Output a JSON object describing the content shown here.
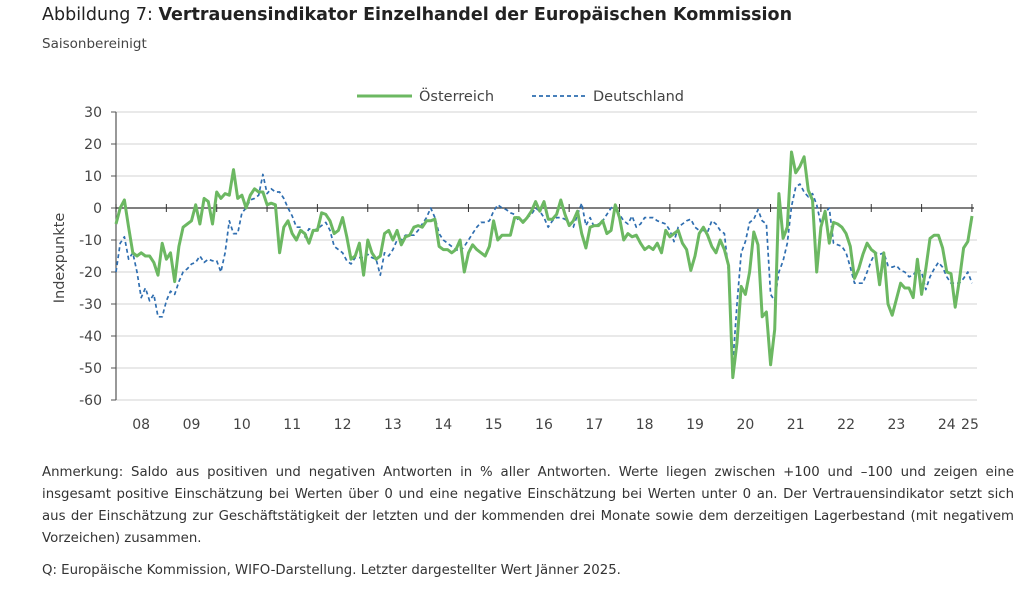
{
  "header": {
    "title_prefix": "Abbildung 7: ",
    "title_main": "Vertrauensindikator Einzelhandel der Europäischen Kommission",
    "subtitle": "Saisonbereinigt"
  },
  "footer": {
    "note": "Anmerkung: Saldo aus positiven und negativen Antworten in % aller Antworten. Werte liegen zwischen +100 und –100 und zeigen eine insgesamt positive Einschätzung bei Werten über 0 und eine negative Einschätzung bei Werten unter 0 an. Der Vertrauensindikator setzt sich aus der Einschätzung zur Geschäftstätigkeit der letzten und der kommenden drei Monate sowie dem derzeitigen Lagerbestand (mit negativem Vorzeichen) zusammen.",
    "source": "Q: Europäische Kommission, WIFO-Darstellung. Letzter dargestellter Wert Jänner 2025."
  },
  "chart_data": {
    "type": "line",
    "ylabel": "Indexpunkte",
    "ylim": [
      -60,
      30
    ],
    "y_ticks": [
      "30",
      "20",
      "10",
      "0",
      "-10",
      "-20",
      "-30",
      "-40",
      "-50",
      "-60"
    ],
    "x_tick_labels": [
      "08",
      "09",
      "10",
      "11",
      "12",
      "13",
      "14",
      "15",
      "16",
      "17",
      "18",
      "19",
      "20",
      "21",
      "22",
      "23",
      "24",
      "25"
    ],
    "x_start": "2008-01",
    "x_end": "2025-01",
    "frequency": "monthly",
    "grid": "horizontal",
    "legend_position": "top-center",
    "series": [
      {
        "name": "Österreich",
        "color": "#6cb862",
        "style": "solid",
        "values": [
          -5,
          0,
          2.5,
          -6,
          -14,
          -15,
          -14,
          -15,
          -15,
          -17,
          -21,
          -11,
          -16,
          -14,
          -23,
          -12,
          -6,
          -5,
          -4,
          1,
          -5,
          3,
          2,
          -5,
          5,
          3,
          4.5,
          4,
          12,
          3,
          4,
          0,
          4,
          6,
          5,
          5,
          1,
          1.5,
          1,
          -14,
          -6,
          -4,
          -8,
          -10,
          -7,
          -8,
          -11,
          -7,
          -7,
          -1.5,
          -2,
          -4,
          -8,
          -7,
          -3,
          -9,
          -16,
          -15,
          -11,
          -21,
          -10,
          -14,
          -16,
          -15,
          -8,
          -7,
          -10,
          -7,
          -11.5,
          -9,
          -8.5,
          -6,
          -5.5,
          -6,
          -4,
          -4,
          -3.5,
          -12,
          -13,
          -13,
          -14,
          -13,
          -10,
          -20,
          -14,
          -11.5,
          -13,
          -14,
          -15,
          -12,
          -4,
          -10,
          -8.5,
          -8.5,
          -8.5,
          -3,
          -3,
          -4.5,
          -3,
          -1,
          2,
          -1,
          2,
          -3.5,
          -3.5,
          -2,
          2.5,
          -2,
          -5.5,
          -4,
          -1,
          -8,
          -12.5,
          -6,
          -5.5,
          -5.5,
          -4,
          -8,
          -7,
          1,
          -3,
          -10,
          -8,
          -9,
          -8.5,
          -11,
          -13,
          -12,
          -13,
          -11,
          -14,
          -7,
          -9,
          -8,
          -7,
          -11,
          -13,
          -19.5,
          -15,
          -8,
          -6,
          -8.5,
          -12,
          -14,
          -10,
          -13,
          -18,
          -53,
          -42,
          -24.5,
          -27,
          -20,
          -7.5,
          -11.5,
          -34,
          -32.5,
          -49,
          -38,
          4.5,
          -9.5,
          -6,
          17.5,
          11,
          13,
          16,
          5.5,
          2.5,
          -20,
          -6,
          -1,
          -11,
          -4.5,
          -5,
          -6,
          -8,
          -12,
          -22,
          -19,
          -14.5,
          -11,
          -13,
          -14,
          -24,
          -14,
          -30,
          -33.5,
          -28.5,
          -23.5,
          -25,
          -25,
          -28,
          -16,
          -27,
          -19,
          -9.5,
          -8.5,
          -8.5,
          -12.5,
          -20,
          -20.5,
          -31,
          -22.5,
          -12.5,
          -10.5,
          -2.5
        ]
      },
      {
        "name": "Deutschland",
        "color": "#2f6eb0",
        "style": "dashed",
        "values": [
          -20,
          -11,
          -9,
          -16,
          -14,
          -20,
          -28,
          -25,
          -29,
          -27,
          -34,
          -34,
          -29,
          -26,
          -27,
          -23,
          -20,
          -19,
          -17.5,
          -17,
          -15,
          -17,
          -16,
          -16.5,
          -16.5,
          -20,
          -14,
          -4,
          -8,
          -8,
          -1.5,
          0,
          2.5,
          3,
          4,
          10.5,
          4.5,
          6,
          5,
          5,
          3,
          0,
          -2.5,
          -6,
          -6,
          -9,
          -6.5,
          -7,
          -6.5,
          -5.5,
          -4.5,
          -7,
          -12,
          -13,
          -14,
          -16.5,
          -17.5,
          -15.5,
          -15.5,
          -15.5,
          -14.5,
          -15.5,
          -16,
          -21,
          -14,
          -15,
          -13,
          -10,
          -10,
          -8.5,
          -8.5,
          -8.5,
          -7,
          -5,
          -3,
          0,
          -3,
          -8,
          -10,
          -11,
          -12,
          -13,
          -13.5,
          -12,
          -10,
          -8,
          -6,
          -4.5,
          -4.5,
          -4,
          -1,
          1,
          0,
          -0.5,
          -1.5,
          -2,
          -4,
          -4,
          -3,
          -2,
          0,
          -1,
          -3,
          -6,
          -4,
          -3,
          -3,
          -3.5,
          -5,
          -6,
          -2,
          1.5,
          -5.5,
          -3,
          -6,
          -5,
          -4,
          -2,
          0,
          1,
          -2,
          -4,
          -5,
          -2.5,
          -6,
          -5,
          -3,
          -3,
          -3,
          -4,
          -4.5,
          -5,
          -7,
          -10.5,
          -6,
          -5,
          -4,
          -3.5,
          -6,
          -7,
          -7,
          -7.5,
          -4,
          -5,
          -7,
          -8,
          -20,
          -48.5,
          -30,
          -14,
          -10.5,
          -4.5,
          -3.5,
          -0.5,
          -4,
          -5,
          -27,
          -29,
          -20,
          -16.5,
          -11,
          0.5,
          6.5,
          7.5,
          5,
          3.5,
          4.5,
          1,
          -5,
          -1.5,
          0,
          -11,
          -11.5,
          -12,
          -14,
          -18.5,
          -23.5,
          -23.5,
          -23.5,
          -20,
          -16.5,
          -14,
          -14.5,
          -14,
          -18,
          -18.5,
          -18,
          -19.5,
          -20,
          -21.5,
          -21,
          -19,
          -20,
          -25.5,
          -21.5,
          -19,
          -17,
          -18.5,
          -21.5,
          -23.5,
          -23.5,
          -23.5,
          -22,
          -20,
          -23.5
        ]
      }
    ]
  }
}
